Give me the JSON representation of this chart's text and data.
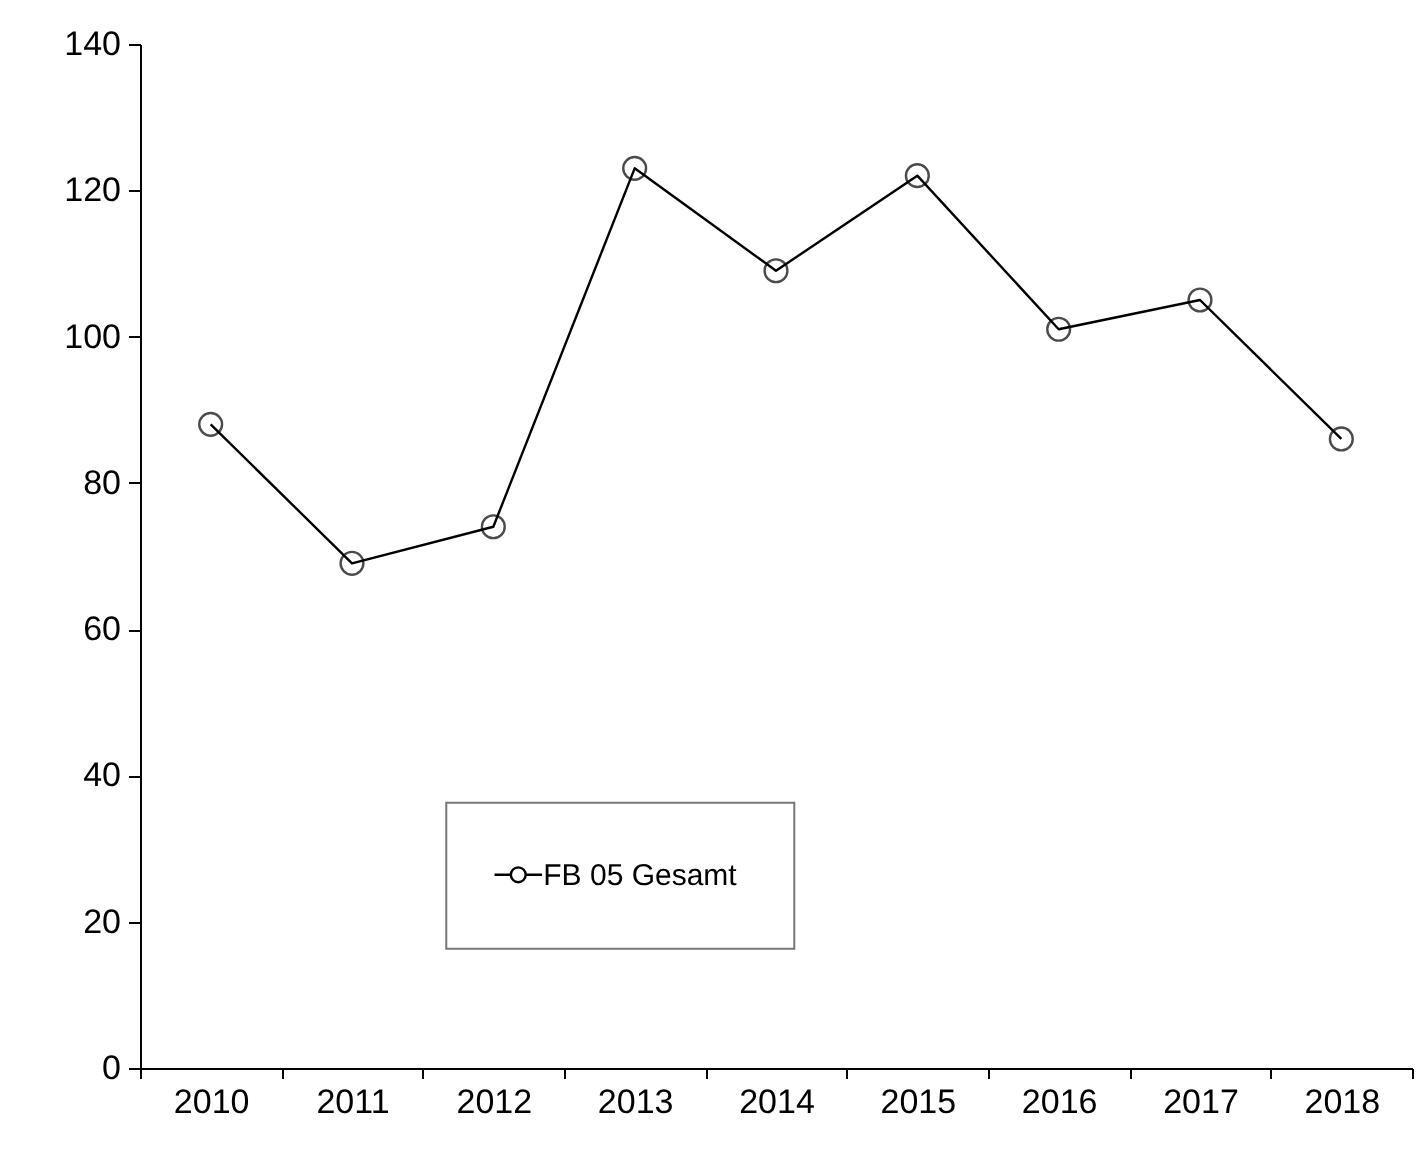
{
  "chart_data": {
    "type": "line",
    "categories": [
      "2010",
      "2011",
      "2012",
      "2013",
      "2014",
      "2015",
      "2016",
      "2017",
      "2018"
    ],
    "series": [
      {
        "name": "FB 05 Gesamt",
        "color": "#000000",
        "values": [
          88,
          69,
          74,
          123,
          109,
          122,
          101,
          105,
          86
        ]
      }
    ],
    "ylim": [
      0,
      140
    ],
    "yticks": [
      0,
      20,
      40,
      60,
      80,
      100,
      120,
      140
    ],
    "grid": false,
    "legend": "bottom",
    "marker": "circle",
    "line_style": "solid"
  }
}
